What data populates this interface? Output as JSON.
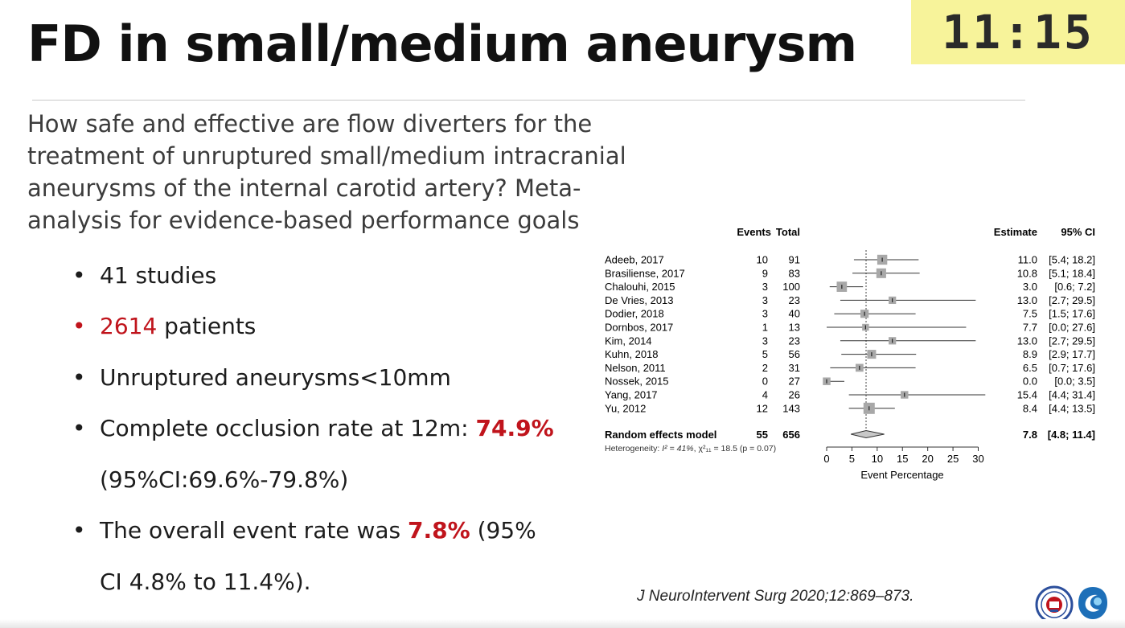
{
  "slide": {
    "title": "FD in small/medium aneurysm",
    "timer": "11:15",
    "question": "How safe and effective are flow diverters for the treatment of unruptured small/medium intracranial aneurysms of the internal carotid artery? Meta-analysis for evidence-based performance goals",
    "bullets": {
      "studies": "41 studies",
      "patients_value": "2614",
      "patients_label": " patients",
      "unruptured": "Unruptured aneurysms<10mm",
      "occlusion_label": "Complete occlusion rate at 12m: ",
      "occlusion_value": "74.9%",
      "occlusion_ci": "(95%CI:69.6%-79.8%)",
      "event_label": "The overall event rate was ",
      "event_value": "7.8%",
      "event_tail": " (95%",
      "event_ci": "CI 4.8% to 11.4%)."
    },
    "bullet_symbol": "•",
    "citation": "J NeuroIntervent Surg 2020;12:869–873.",
    "colors": {
      "accent_red": "#c0141c",
      "timer_bg": "#f7f39a",
      "box_gray": "#a8a8a8"
    }
  },
  "chart_data": {
    "type": "forest",
    "headers": {
      "events": "Events",
      "total": "Total",
      "estimate": "Estimate",
      "ci": "95% CI"
    },
    "studies": [
      {
        "name": "Adeeb, 2017",
        "events": 10,
        "total": 91,
        "estimate": 11.0,
        "lower": 5.4,
        "upper": 18.2,
        "ci_text": "[5.4; 18.2]"
      },
      {
        "name": "Brasiliense, 2017",
        "events": 9,
        "total": 83,
        "estimate": 10.8,
        "lower": 5.1,
        "upper": 18.4,
        "ci_text": "[5.1; 18.4]"
      },
      {
        "name": "Chalouhi, 2015",
        "events": 3,
        "total": 100,
        "estimate": 3.0,
        "lower": 0.6,
        "upper": 7.2,
        "ci_text": "[0.6; 7.2]"
      },
      {
        "name": "De Vries, 2013",
        "events": 3,
        "total": 23,
        "estimate": 13.0,
        "lower": 2.7,
        "upper": 29.5,
        "ci_text": "[2.7; 29.5]"
      },
      {
        "name": "Dodier, 2018",
        "events": 3,
        "total": 40,
        "estimate": 7.5,
        "lower": 1.5,
        "upper": 17.6,
        "ci_text": "[1.5; 17.6]"
      },
      {
        "name": "Dornbos, 2017",
        "events": 1,
        "total": 13,
        "estimate": 7.7,
        "lower": 0.0,
        "upper": 27.6,
        "ci_text": "[0.0; 27.6]"
      },
      {
        "name": "Kim, 2014",
        "events": 3,
        "total": 23,
        "estimate": 13.0,
        "lower": 2.7,
        "upper": 29.5,
        "ci_text": "[2.7; 29.5]"
      },
      {
        "name": "Kuhn, 2018",
        "events": 5,
        "total": 56,
        "estimate": 8.9,
        "lower": 2.9,
        "upper": 17.7,
        "ci_text": "[2.9; 17.7]"
      },
      {
        "name": "Nelson, 2011",
        "events": 2,
        "total": 31,
        "estimate": 6.5,
        "lower": 0.7,
        "upper": 17.6,
        "ci_text": "[0.7; 17.6]"
      },
      {
        "name": "Nossek, 2015",
        "events": 0,
        "total": 27,
        "estimate": 0.0,
        "lower": 0.0,
        "upper": 3.5,
        "ci_text": "[0.0; 3.5]"
      },
      {
        "name": "Yang, 2017",
        "events": 4,
        "total": 26,
        "estimate": 15.4,
        "lower": 4.4,
        "upper": 31.4,
        "ci_text": "[4.4; 31.4]"
      },
      {
        "name": "Yu, 2012",
        "events": 12,
        "total": 143,
        "estimate": 8.4,
        "lower": 4.4,
        "upper": 13.5,
        "ci_text": "[4.4; 13.5]"
      }
    ],
    "pooled": {
      "name": "Random effects model",
      "events": 55,
      "total": 656,
      "estimate": 7.8,
      "lower": 4.8,
      "upper": 11.4,
      "ci_text": "[4.8; 11.4]"
    },
    "heterogeneity": {
      "prefix": "Heterogeneity: ",
      "i2": "I² = 41%",
      "chi2": "χ²₁₁ = 18.5",
      "p": "(p = 0.07)"
    },
    "xlabel": "Event Percentage",
    "xticks": [
      0,
      5,
      10,
      15,
      20,
      25,
      30
    ],
    "xlim": [
      0,
      30
    ]
  }
}
